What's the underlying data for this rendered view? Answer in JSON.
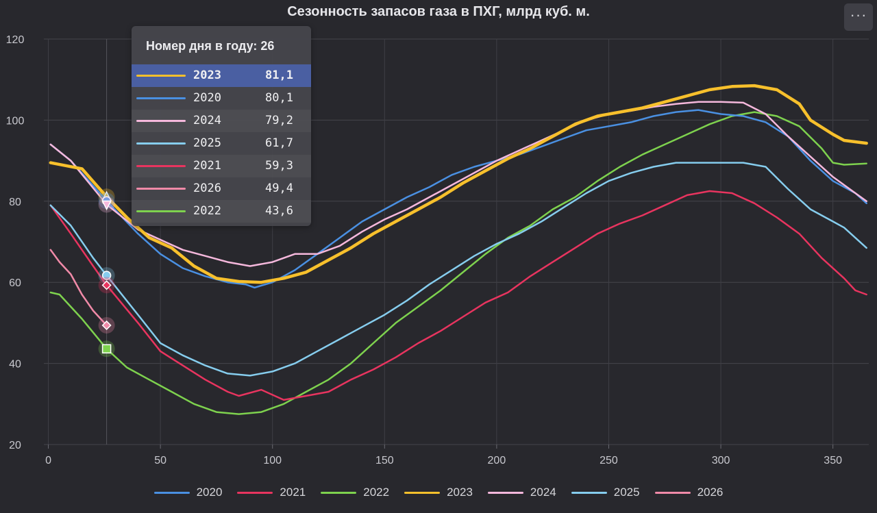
{
  "title": "Сезонность запасов газа в ПХГ, млрд куб. м.",
  "menu_label": "···",
  "tooltip": {
    "header": "Номер дня в году: 26",
    "day": 26,
    "rows": [
      {
        "year": "2023",
        "value": "81,1",
        "color": "#f7c02c",
        "highlight": true
      },
      {
        "year": "2020",
        "value": "80,1",
        "color": "#4a90e2"
      },
      {
        "year": "2024",
        "value": "79,2",
        "color": "#f5b8dc"
      },
      {
        "year": "2025",
        "value": "61,7",
        "color": "#86cdee"
      },
      {
        "year": "2021",
        "value": "59,3",
        "color": "#e8345f"
      },
      {
        "year": "2026",
        "value": "49,4",
        "color": "#f08aa8"
      },
      {
        "year": "2022",
        "value": "43,6",
        "color": "#7ed24e"
      }
    ]
  },
  "chart_data": {
    "type": "line",
    "title": "Сезонность запасов газа в ПХГ, млрд куб. м.",
    "xlabel": "",
    "ylabel": "",
    "xlim": [
      -2,
      366
    ],
    "ylim": [
      20,
      120
    ],
    "x_ticks": [
      "0",
      "50",
      "100",
      "150",
      "200",
      "250",
      "300",
      "350"
    ],
    "y_ticks": [
      "20",
      "40",
      "60",
      "80",
      "100",
      "120"
    ],
    "grid": true,
    "legend_position": "bottom",
    "series": [
      {
        "name": "2020",
        "color": "#4a90e2",
        "width": 2.5,
        "points": [
          [
            1,
            94
          ],
          [
            10,
            90
          ],
          [
            26,
            80.1
          ],
          [
            40,
            72
          ],
          [
            50,
            67
          ],
          [
            60,
            63.5
          ],
          [
            70,
            61.5
          ],
          [
            80,
            60
          ],
          [
            88,
            59.5
          ],
          [
            92,
            58.7
          ],
          [
            100,
            60
          ],
          [
            110,
            63
          ],
          [
            120,
            67
          ],
          [
            130,
            71
          ],
          [
            140,
            75
          ],
          [
            150,
            78
          ],
          [
            160,
            81
          ],
          [
            170,
            83.5
          ],
          [
            180,
            86.5
          ],
          [
            190,
            88.5
          ],
          [
            200,
            90
          ],
          [
            210,
            91.5
          ],
          [
            220,
            93.5
          ],
          [
            230,
            95.5
          ],
          [
            240,
            97.5
          ],
          [
            250,
            98.5
          ],
          [
            260,
            99.5
          ],
          [
            270,
            101
          ],
          [
            280,
            102
          ],
          [
            290,
            102.5
          ],
          [
            300,
            101.5
          ],
          [
            310,
            101
          ],
          [
            320,
            99.5
          ],
          [
            330,
            96
          ],
          [
            340,
            90
          ],
          [
            350,
            85
          ],
          [
            360,
            82
          ],
          [
            365,
            79.5
          ]
        ]
      },
      {
        "name": "2021",
        "color": "#e8345f",
        "width": 2.5,
        "points": [
          [
            1,
            79
          ],
          [
            10,
            72
          ],
          [
            20,
            64
          ],
          [
            26,
            59.3
          ],
          [
            40,
            50
          ],
          [
            50,
            43
          ],
          [
            60,
            39.5
          ],
          [
            70,
            36
          ],
          [
            80,
            33
          ],
          [
            85,
            32
          ],
          [
            95,
            33.5
          ],
          [
            105,
            31
          ],
          [
            115,
            32
          ],
          [
            125,
            33
          ],
          [
            135,
            36
          ],
          [
            145,
            38.5
          ],
          [
            155,
            41.5
          ],
          [
            165,
            45
          ],
          [
            175,
            48
          ],
          [
            185,
            51.5
          ],
          [
            195,
            55
          ],
          [
            205,
            57.5
          ],
          [
            215,
            61.5
          ],
          [
            225,
            65
          ],
          [
            235,
            68.5
          ],
          [
            245,
            72
          ],
          [
            255,
            74.5
          ],
          [
            265,
            76.5
          ],
          [
            275,
            79
          ],
          [
            285,
            81.5
          ],
          [
            295,
            82.5
          ],
          [
            305,
            82
          ],
          [
            315,
            79.5
          ],
          [
            325,
            76
          ],
          [
            335,
            72
          ],
          [
            345,
            66
          ],
          [
            355,
            61
          ],
          [
            360,
            58
          ],
          [
            365,
            57
          ]
        ]
      },
      {
        "name": "2022",
        "color": "#7ed24e",
        "width": 2.5,
        "points": [
          [
            1,
            57.5
          ],
          [
            5,
            57
          ],
          [
            15,
            51
          ],
          [
            26,
            43.6
          ],
          [
            35,
            39
          ],
          [
            45,
            36
          ],
          [
            55,
            33
          ],
          [
            65,
            30
          ],
          [
            75,
            28
          ],
          [
            85,
            27.5
          ],
          [
            95,
            28
          ],
          [
            105,
            30
          ],
          [
            115,
            33
          ],
          [
            125,
            36
          ],
          [
            135,
            40
          ],
          [
            145,
            45
          ],
          [
            155,
            50
          ],
          [
            165,
            54
          ],
          [
            175,
            58
          ],
          [
            185,
            62.5
          ],
          [
            195,
            67
          ],
          [
            205,
            71
          ],
          [
            215,
            74
          ],
          [
            225,
            78
          ],
          [
            235,
            81
          ],
          [
            245,
            85
          ],
          [
            255,
            88.5
          ],
          [
            265,
            91.5
          ],
          [
            275,
            94
          ],
          [
            285,
            96.5
          ],
          [
            295,
            99
          ],
          [
            305,
            101
          ],
          [
            315,
            102
          ],
          [
            325,
            101
          ],
          [
            335,
            98.5
          ],
          [
            345,
            93
          ],
          [
            350,
            89.5
          ],
          [
            355,
            89
          ],
          [
            365,
            89.3
          ]
        ]
      },
      {
        "name": "2023",
        "color": "#f7c02c",
        "width": 4.5,
        "points": [
          [
            1,
            89.5
          ],
          [
            15,
            88
          ],
          [
            26,
            81.1
          ],
          [
            35,
            76
          ],
          [
            45,
            71
          ],
          [
            55,
            68.5
          ],
          [
            65,
            64
          ],
          [
            75,
            61
          ],
          [
            85,
            60.2
          ],
          [
            95,
            60
          ],
          [
            105,
            61
          ],
          [
            115,
            62.5
          ],
          [
            125,
            65.5
          ],
          [
            135,
            68.5
          ],
          [
            145,
            72
          ],
          [
            155,
            75
          ],
          [
            165,
            78
          ],
          [
            175,
            81
          ],
          [
            185,
            84.5
          ],
          [
            195,
            87.5
          ],
          [
            205,
            90.5
          ],
          [
            215,
            93
          ],
          [
            225,
            96
          ],
          [
            235,
            99
          ],
          [
            245,
            101
          ],
          [
            255,
            102
          ],
          [
            265,
            103
          ],
          [
            275,
            104.5
          ],
          [
            285,
            106
          ],
          [
            295,
            107.5
          ],
          [
            305,
            108.3
          ],
          [
            315,
            108.5
          ],
          [
            325,
            107.5
          ],
          [
            335,
            104
          ],
          [
            340,
            100
          ],
          [
            350,
            96.5
          ],
          [
            355,
            95
          ],
          [
            365,
            94.3
          ]
        ]
      },
      {
        "name": "2024",
        "color": "#f5b8dc",
        "width": 2.5,
        "points": [
          [
            1,
            94
          ],
          [
            10,
            90
          ],
          [
            26,
            79.2
          ],
          [
            40,
            73
          ],
          [
            50,
            70.5
          ],
          [
            60,
            68
          ],
          [
            70,
            66.5
          ],
          [
            80,
            65
          ],
          [
            90,
            64
          ],
          [
            100,
            65
          ],
          [
            110,
            67
          ],
          [
            120,
            67
          ],
          [
            130,
            69
          ],
          [
            140,
            72.5
          ],
          [
            150,
            75.5
          ],
          [
            160,
            78
          ],
          [
            170,
            81
          ],
          [
            180,
            84
          ],
          [
            190,
            87
          ],
          [
            200,
            90
          ],
          [
            210,
            92.5
          ],
          [
            220,
            95
          ],
          [
            230,
            97.5
          ],
          [
            240,
            100
          ],
          [
            250,
            101.5
          ],
          [
            260,
            102.3
          ],
          [
            270,
            103.3
          ],
          [
            280,
            104
          ],
          [
            290,
            104.5
          ],
          [
            300,
            104.5
          ],
          [
            310,
            104.3
          ],
          [
            320,
            101.5
          ],
          [
            330,
            96
          ],
          [
            340,
            91
          ],
          [
            350,
            86
          ],
          [
            360,
            82
          ],
          [
            365,
            80
          ]
        ]
      },
      {
        "name": "2025",
        "color": "#86cdee",
        "width": 2.5,
        "points": [
          [
            1,
            79
          ],
          [
            10,
            74
          ],
          [
            20,
            66
          ],
          [
            26,
            61.7
          ],
          [
            40,
            52
          ],
          [
            50,
            45
          ],
          [
            60,
            42
          ],
          [
            70,
            39.5
          ],
          [
            80,
            37.5
          ],
          [
            90,
            37
          ],
          [
            100,
            38
          ],
          [
            110,
            40
          ],
          [
            120,
            43
          ],
          [
            130,
            46
          ],
          [
            140,
            49
          ],
          [
            150,
            52
          ],
          [
            160,
            55.5
          ],
          [
            170,
            59.5
          ],
          [
            180,
            63
          ],
          [
            190,
            66.5
          ],
          [
            200,
            69.5
          ],
          [
            210,
            72
          ],
          [
            220,
            75
          ],
          [
            230,
            78.5
          ],
          [
            240,
            82
          ],
          [
            250,
            85
          ],
          [
            260,
            87
          ],
          [
            270,
            88.5
          ],
          [
            280,
            89.5
          ],
          [
            290,
            89.5
          ],
          [
            300,
            89.5
          ],
          [
            310,
            89.5
          ],
          [
            320,
            88.5
          ],
          [
            330,
            83
          ],
          [
            340,
            78
          ],
          [
            350,
            75
          ],
          [
            355,
            73.5
          ],
          [
            365,
            68.5
          ]
        ]
      },
      {
        "name": "2026",
        "color": "#f08aa8",
        "width": 2.5,
        "points": [
          [
            1,
            68
          ],
          [
            5,
            65
          ],
          [
            10,
            62
          ],
          [
            15,
            57
          ],
          [
            20,
            53
          ],
          [
            26,
            49.4
          ]
        ]
      }
    ],
    "markers": [
      {
        "series": "2023",
        "shape": "triangle"
      },
      {
        "series": "2020",
        "shape": "circle"
      },
      {
        "series": "2024",
        "shape": "triangle-down"
      },
      {
        "series": "2025",
        "shape": "circle"
      },
      {
        "series": "2021",
        "shape": "diamond"
      },
      {
        "series": "2026",
        "shape": "diamond"
      },
      {
        "series": "2022",
        "shape": "square"
      }
    ]
  },
  "legend": [
    {
      "label": "2020",
      "color": "#4a90e2"
    },
    {
      "label": "2021",
      "color": "#e8345f"
    },
    {
      "label": "2022",
      "color": "#7ed24e"
    },
    {
      "label": "2023",
      "color": "#f7c02c"
    },
    {
      "label": "2024",
      "color": "#f5b8dc"
    },
    {
      "label": "2025",
      "color": "#86cdee"
    },
    {
      "label": "2026",
      "color": "#f08aa8"
    }
  ]
}
